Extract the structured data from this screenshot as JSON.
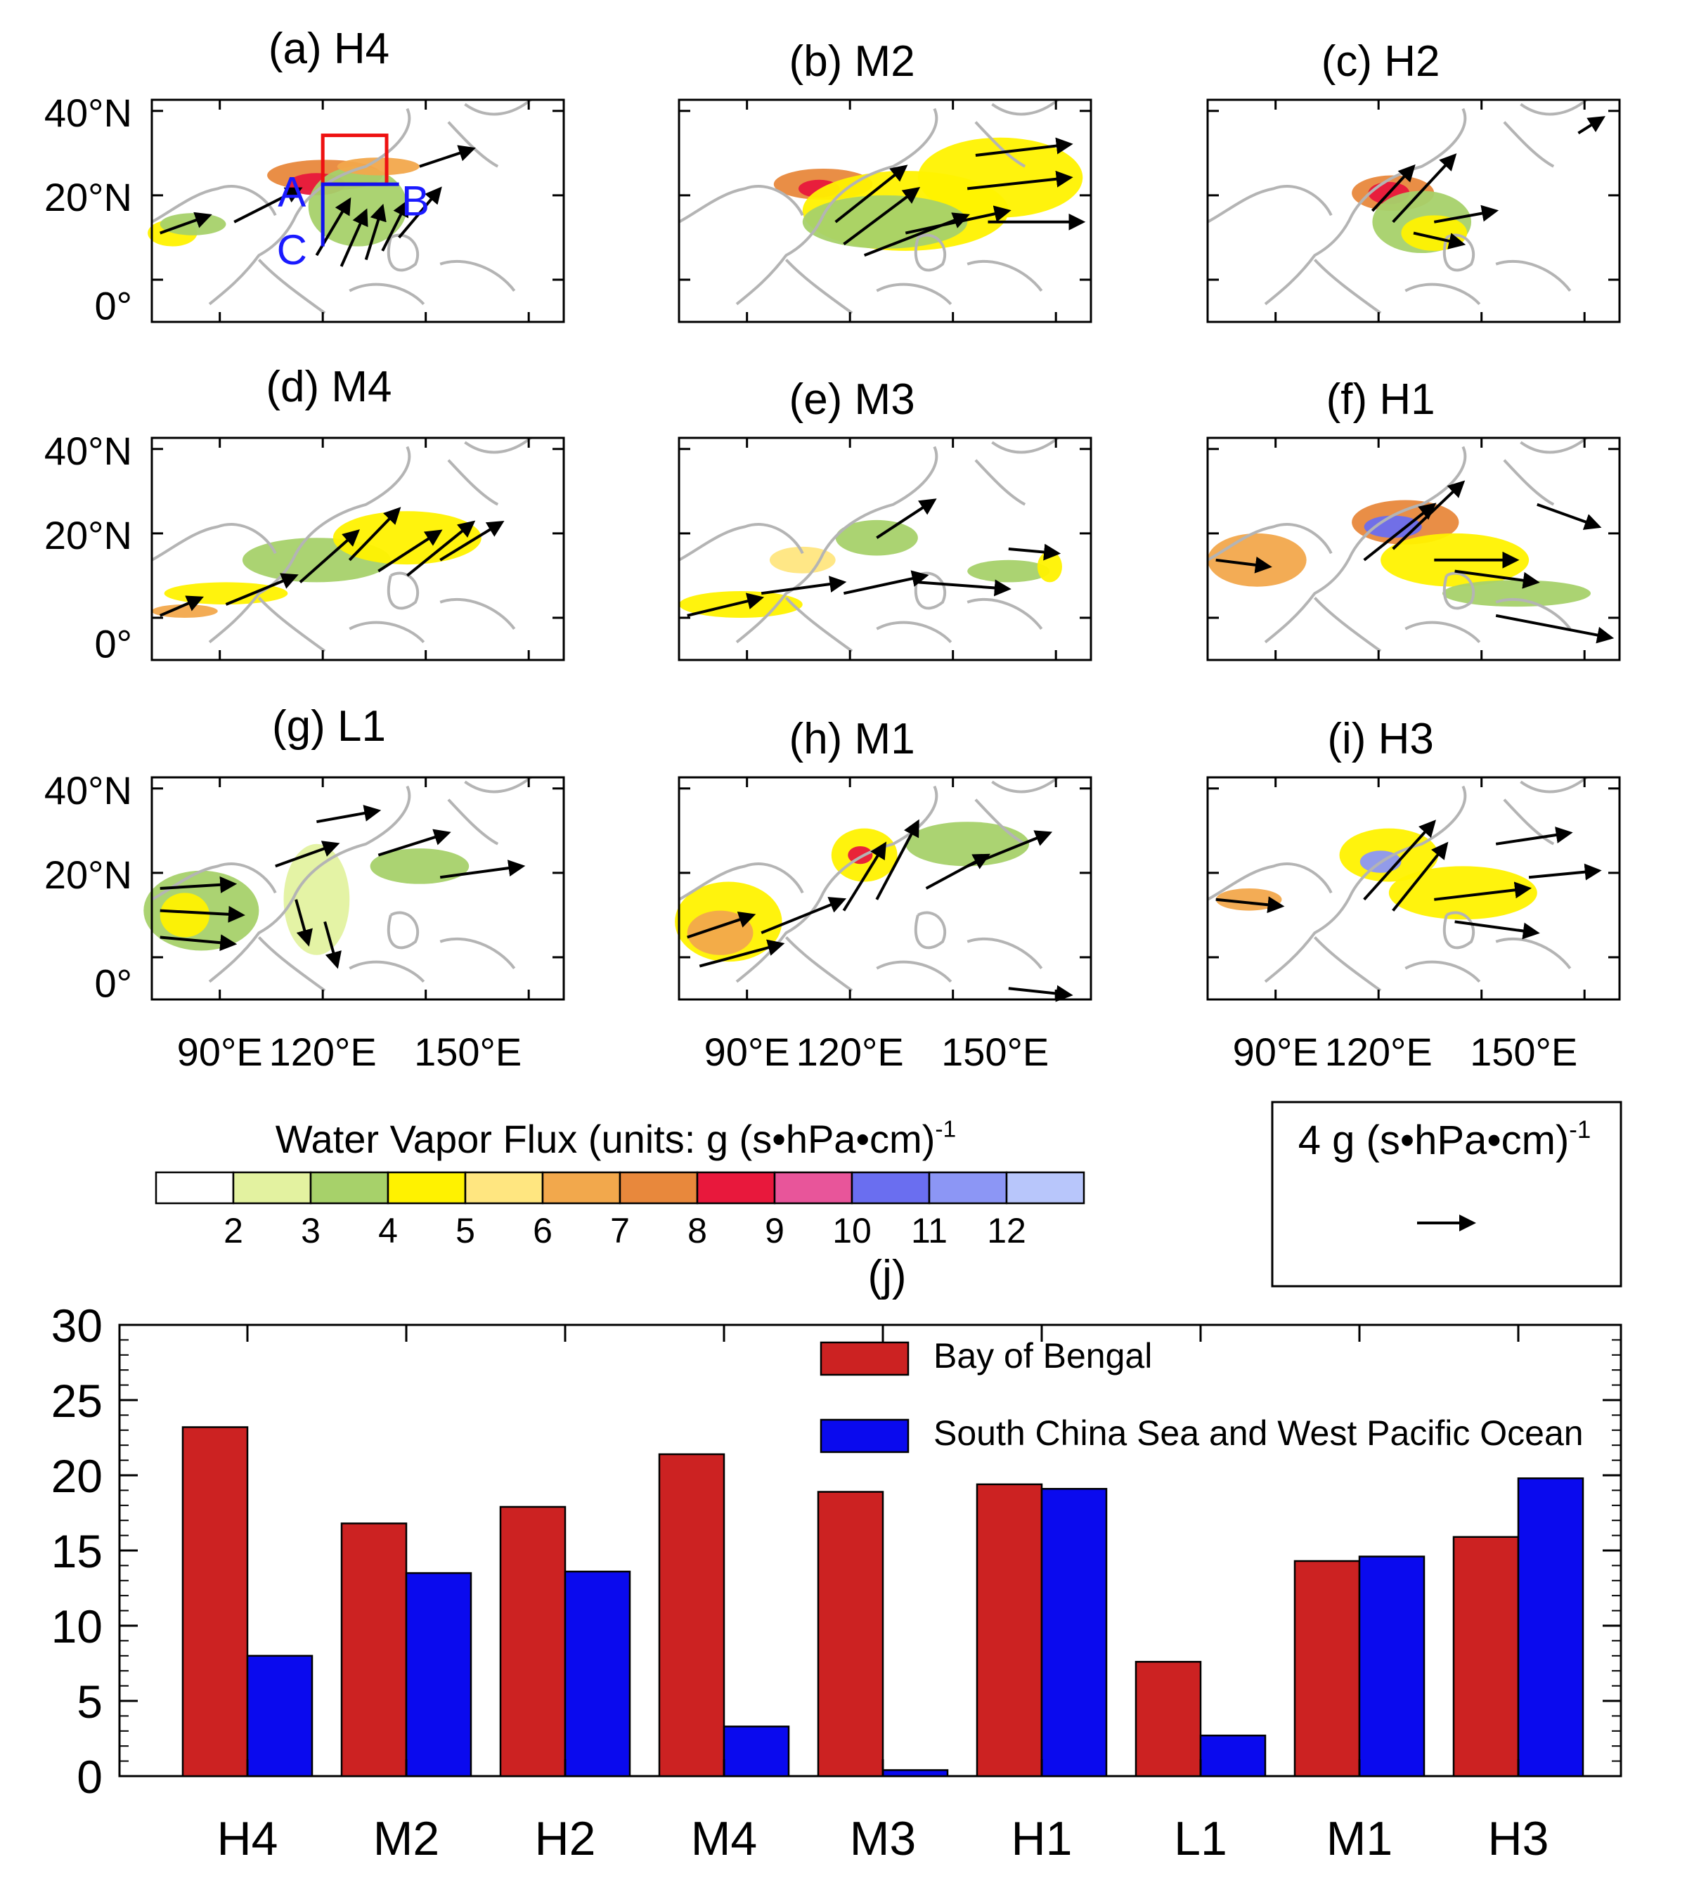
{
  "chart_data": [
    {
      "type": "map-panels",
      "panels": [
        {
          "title": "(a) H4"
        },
        {
          "title": "(b) M2"
        },
        {
          "title": "(c) H2"
        },
        {
          "title": "(d) M4"
        },
        {
          "title": "(e) M3"
        },
        {
          "title": "(f) H1"
        },
        {
          "title": "(g) L1"
        },
        {
          "title": "(h) M1"
        },
        {
          "title": "(i) H3"
        }
      ],
      "lat_ticks": [
        "40°N",
        "20°N",
        "0°"
      ],
      "lon_ticks": [
        "90°E",
        "120°E",
        "150°E"
      ],
      "region_labels": [
        "A",
        "B",
        "C"
      ],
      "colorbar": {
        "title": "Water Vapor Flux (units: g (s•hPa•cm)",
        "title_sup": "-1",
        "levels": [
          "2",
          "3",
          "4",
          "5",
          "6",
          "7",
          "8",
          "9",
          "10",
          "11",
          "12"
        ],
        "colors": [
          "#ffffff",
          "#e3f2a0",
          "#a7d16a",
          "#fff200",
          "#ffe680",
          "#f2a84c",
          "#e8883c",
          "#e8183c",
          "#e8559a",
          "#6a6ef0",
          "#8c96f5",
          "#b8c6fb"
        ]
      },
      "reference_vector": {
        "label": "4 g (s•hPa•cm)",
        "label_sup": "-1"
      }
    },
    {
      "type": "bar",
      "title": "(j)",
      "categories": [
        "H4",
        "M2",
        "H2",
        "M4",
        "M3",
        "H1",
        "L1",
        "M1",
        "H3"
      ],
      "series": [
        {
          "name": "Bay of Bengal",
          "color": "#cc2222",
          "values": [
            23.2,
            16.8,
            17.9,
            21.4,
            18.9,
            19.4,
            7.6,
            14.3,
            15.9
          ]
        },
        {
          "name": "South China Sea and West Pacific Ocean",
          "color": "#0a0aee",
          "values": [
            8.0,
            13.5,
            13.6,
            3.3,
            0.4,
            19.1,
            2.7,
            14.6,
            19.8
          ]
        }
      ],
      "yticks": [
        "0",
        "5",
        "10",
        "15",
        "20",
        "25",
        "30"
      ],
      "ylim": [
        0,
        30
      ]
    }
  ]
}
